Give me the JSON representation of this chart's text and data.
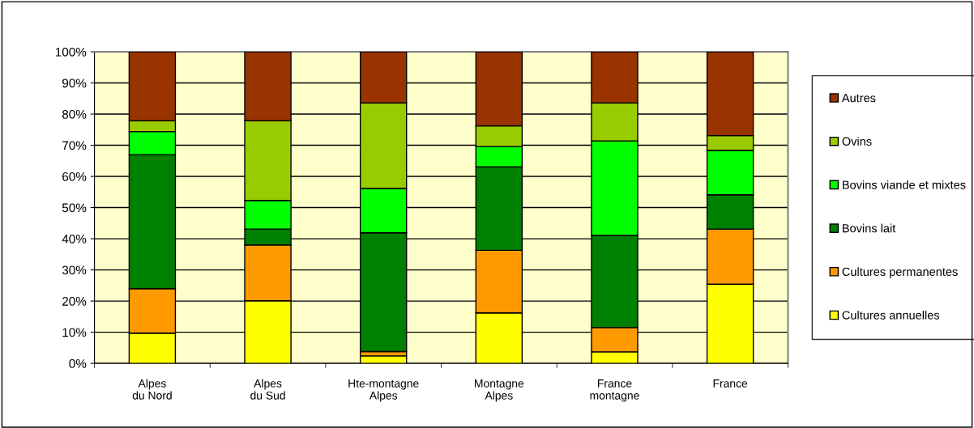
{
  "chart_data": {
    "type": "bar",
    "stacked": true,
    "categories": [
      "Alpes\ndu Nord",
      "Alpes\ndu Sud",
      "Hte-montagne\nAlpes",
      "Montagne\nAlpes",
      "France\nmontagne",
      "France"
    ],
    "series": [
      {
        "name": "Cultures annuelles",
        "color": "#ffff00",
        "values": [
          9.7,
          20.1,
          2.4,
          16.2,
          3.7,
          25.4
        ]
      },
      {
        "name": "Cultures permanentes",
        "color": "#ff9900",
        "values": [
          14.3,
          17.9,
          1.4,
          20.1,
          7.8,
          17.7
        ]
      },
      {
        "name": "Bovins lait",
        "color": "#008000",
        "values": [
          43.0,
          5.1,
          38.1,
          26.8,
          29.6,
          11.0
        ]
      },
      {
        "name": "Bovins viande et mixtes",
        "color": "#00ff00",
        "values": [
          7.4,
          9.2,
          14.3,
          6.5,
          30.3,
          14.3
        ]
      },
      {
        "name": "Ovins",
        "color": "#99cc00",
        "values": [
          3.5,
          25.6,
          27.4,
          6.6,
          12.2,
          4.7
        ]
      },
      {
        "name": "Autres",
        "color": "#993300",
        "values": [
          22.1,
          22.1,
          16.4,
          23.8,
          16.4,
          26.9
        ]
      }
    ],
    "ylim": [
      0,
      100
    ],
    "yticks": [
      {
        "value": 0,
        "label": "0%"
      },
      {
        "value": 10,
        "label": "10%"
      },
      {
        "value": 20,
        "label": "20%"
      },
      {
        "value": 30,
        "label": "30%"
      },
      {
        "value": 40,
        "label": "40%"
      },
      {
        "value": 50,
        "label": "50%"
      },
      {
        "value": 60,
        "label": "60%"
      },
      {
        "value": 70,
        "label": "70%"
      },
      {
        "value": 80,
        "label": "80%"
      },
      {
        "value": 90,
        "label": "90%"
      },
      {
        "value": 100,
        "label": "100%"
      }
    ],
    "grid": "y",
    "legend": "right"
  }
}
